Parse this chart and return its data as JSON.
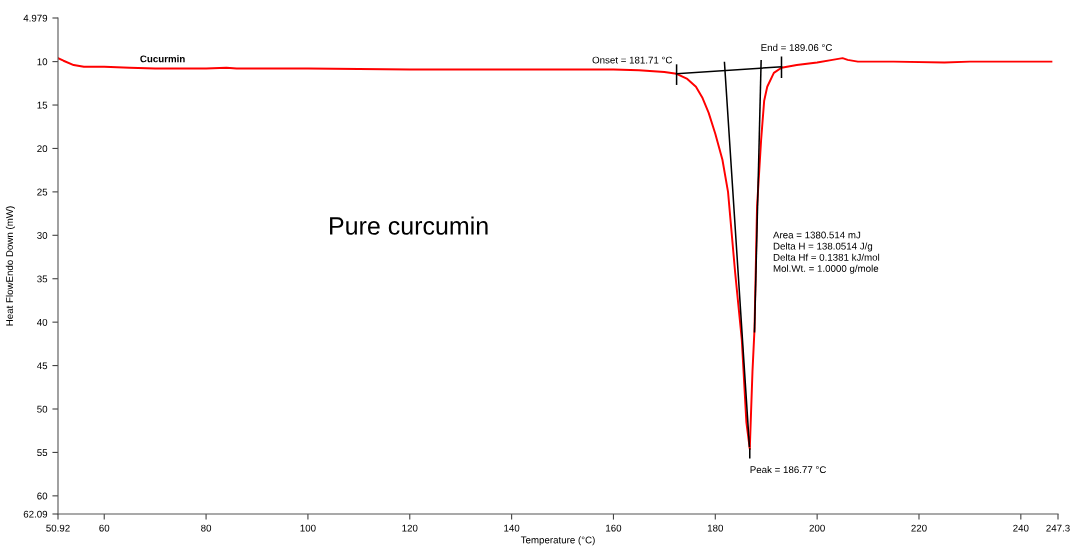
{
  "chart_data": {
    "type": "line",
    "xlabel": "Temperature (°C)",
    "ylabel": "Heat FlowEndo Down (mW)",
    "xlim": [
      50.92,
      247.3
    ],
    "ylim": [
      62.09,
      4.979
    ],
    "xticks": [
      50.92,
      60,
      80,
      100,
      120,
      140,
      160,
      180,
      200,
      220,
      240,
      247.3
    ],
    "yticks": [
      4.979,
      10,
      15,
      20,
      25,
      30,
      35,
      40,
      45,
      50,
      55,
      60,
      62.09
    ],
    "grid": false,
    "legend": false,
    "marker": "none",
    "line_style": "solid",
    "series": [
      {
        "name": "Cucurmin",
        "color": "#ff0000",
        "x": [
          50.92,
          52,
          54,
          56,
          60,
          65,
          70,
          75,
          80,
          84,
          86,
          100,
          120,
          140,
          160,
          165,
          170,
          172.4,
          174.5,
          176.2,
          177.5,
          178.7,
          180,
          181.4,
          182.5,
          183.9,
          185.2,
          186.1,
          186.77,
          187.3,
          187.7,
          188.2,
          189.0,
          189.6,
          190.2,
          191.5,
          193,
          196,
          200,
          203,
          205,
          206,
          208,
          215,
          225,
          230,
          240,
          246
        ],
        "values": [
          9.6,
          9.9,
          10.4,
          10.6,
          10.6,
          10.7,
          10.8,
          10.8,
          10.8,
          10.7,
          10.8,
          10.8,
          10.9,
          10.9,
          10.9,
          11.0,
          11.2,
          11.4,
          12.0,
          12.9,
          14.2,
          15.9,
          18.3,
          21.3,
          25.0,
          34.3,
          42,
          51.5,
          54.6,
          45.7,
          40.8,
          26.7,
          19,
          14.5,
          12.9,
          11.3,
          10.7,
          10.4,
          10.1,
          9.8,
          9.6,
          9.8,
          10.0,
          10.0,
          10.1,
          10.0,
          10.0,
          10.0
        ]
      },
      {
        "color": "#000000",
        "x": [
          172.4,
          193.0
        ],
        "values": [
          11.4,
          10.6
        ]
      },
      {
        "color": "#000000",
        "x": [
          181.8,
          186.7
        ],
        "values": [
          10.1,
          54.3
        ]
      },
      {
        "color": "#000000",
        "x": [
          189.0,
          187.7
        ],
        "values": [
          9.9,
          41.1
        ]
      },
      {
        "color": "#000000",
        "x": [
          172.4,
          172.4
        ],
        "values": [
          10.4,
          12.6
        ]
      },
      {
        "color": "#000000",
        "x": [
          193.0,
          193.0
        ],
        "values": [
          9.5,
          11.8
        ]
      },
      {
        "color": "#000000",
        "x": [
          186.77,
          186.77
        ],
        "values": [
          54.6,
          55.6
        ]
      }
    ],
    "annotations": [
      {
        "text": "Onset = 181.71 °C",
        "x": 172.4,
        "y": 11.4
      },
      {
        "text": "End = 189.06 °C",
        "x": 193.0,
        "y": 10.6
      },
      {
        "text": "Peak = 186.77 °C",
        "x": 186.77,
        "y": 55.6
      },
      "Area = 1380.514 mJ\nDelta H = 138.0514 J/g\nDelta Hf = 0.1381 kJ/mol\nMol.Wt. = 1.0000 g/mole",
      "Pure curcumin"
    ]
  }
}
